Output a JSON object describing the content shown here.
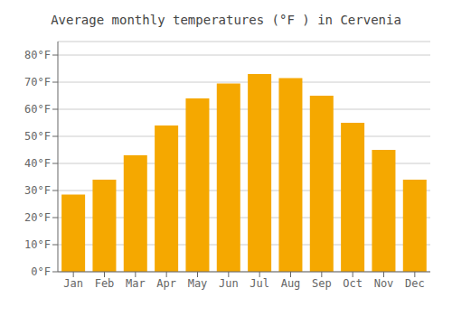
{
  "chart_data": {
    "type": "bar",
    "title": "Average monthly temperatures (°F ) in Cervenia",
    "categories": [
      "Jan",
      "Feb",
      "Mar",
      "Apr",
      "May",
      "Jun",
      "Jul",
      "Aug",
      "Sep",
      "Oct",
      "Nov",
      "Dec"
    ],
    "values": [
      28.5,
      34.0,
      43.0,
      54.0,
      64.0,
      69.5,
      73.0,
      71.5,
      65.0,
      55.0,
      45.0,
      34.0
    ],
    "color": "#F5A800",
    "ylim": [
      0,
      85
    ],
    "yticks": [
      {
        "value": 0,
        "label": "0°F"
      },
      {
        "value": 10,
        "label": "10°F"
      },
      {
        "value": 20,
        "label": "20°F"
      },
      {
        "value": 30,
        "label": "30°F"
      },
      {
        "value": 40,
        "label": "40°F"
      },
      {
        "value": 50,
        "label": "50°F"
      },
      {
        "value": 60,
        "label": "60°F"
      },
      {
        "value": 70,
        "label": "70°F"
      },
      {
        "value": 80,
        "label": "80°F"
      }
    ],
    "grid": true
  }
}
